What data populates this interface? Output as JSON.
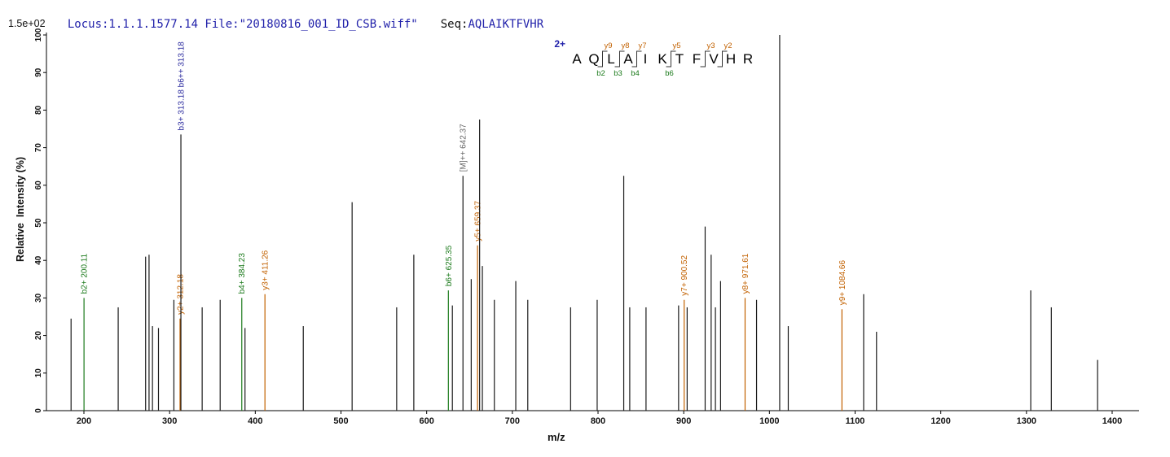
{
  "header": {
    "locus_file": "Locus:1.1.1.1577.14 File:\"20180816_001_ID_CSB.wiff\"",
    "seq_label": "Seq:",
    "seq_value": "AQLAIKTFVHR"
  },
  "colors": {
    "black": "#1a1a1a",
    "b": "#1b7a1b",
    "y": "#c26100",
    "navy": "#2a2a9e",
    "gray": "#666666",
    "header_blue": "#2121aa",
    "axis": "#000000"
  },
  "chart_data": {
    "type": "bar",
    "subtype": "ms2-centroid-spectrum",
    "title": "",
    "xlabel": "m/z",
    "ylabel": "Relative  Intensity (%)",
    "y_scale_note": "1.5e+02",
    "xlim": [
      156,
      1431
    ],
    "ylim": [
      0,
      100
    ],
    "grid": false,
    "legend": false,
    "x_ticks": [
      200,
      300,
      400,
      500,
      600,
      700,
      800,
      900,
      1000,
      1100,
      1200,
      1300,
      1400
    ],
    "y_ticks": [
      0,
      10,
      20,
      30,
      40,
      50,
      60,
      70,
      80,
      90,
      100
    ],
    "peaks": [
      {
        "mz": 185.0,
        "h": 24.5,
        "c": "black"
      },
      {
        "mz": 200.11,
        "h": 30.0,
        "c": "b",
        "label": "b2+ 200.11"
      },
      {
        "mz": 240.0,
        "h": 27.5,
        "c": "black"
      },
      {
        "mz": 272.0,
        "h": 41.0,
        "c": "black"
      },
      {
        "mz": 276.0,
        "h": 41.5,
        "c": "black"
      },
      {
        "mz": 280.0,
        "h": 22.5,
        "c": "black"
      },
      {
        "mz": 287.0,
        "h": 22.0,
        "c": "black"
      },
      {
        "mz": 305.0,
        "h": 29.5,
        "c": "black"
      },
      {
        "mz": 312.18,
        "h": 24.5,
        "c": "y",
        "label": "y2+ 312.18"
      },
      {
        "mz": 313.18,
        "h": 73.5,
        "c": "black",
        "label": "b3+ 313.18  b6++ 313.18",
        "lc": "navy"
      },
      {
        "mz": 338.0,
        "h": 27.5,
        "c": "black"
      },
      {
        "mz": 359.0,
        "h": 29.5,
        "c": "black"
      },
      {
        "mz": 384.23,
        "h": 30.0,
        "c": "b",
        "label": "b4+ 384.23"
      },
      {
        "mz": 388.0,
        "h": 22.0,
        "c": "black"
      },
      {
        "mz": 411.26,
        "h": 31.0,
        "c": "y",
        "label": "y3+ 411.26"
      },
      {
        "mz": 456.0,
        "h": 22.5,
        "c": "black"
      },
      {
        "mz": 513.0,
        "h": 55.5,
        "c": "black"
      },
      {
        "mz": 565.0,
        "h": 27.5,
        "c": "black"
      },
      {
        "mz": 585.0,
        "h": 41.5,
        "c": "black"
      },
      {
        "mz": 625.35,
        "h": 32.0,
        "c": "b",
        "label": "b6+ 625.35"
      },
      {
        "mz": 630.0,
        "h": 28.0,
        "c": "black"
      },
      {
        "mz": 642.37,
        "h": 62.5,
        "c": "black",
        "label": "[M]++ 642.37",
        "lc": "gray"
      },
      {
        "mz": 652.0,
        "h": 35.0,
        "c": "black"
      },
      {
        "mz": 659.37,
        "h": 44.0,
        "c": "y",
        "label": "y5+ 659.37"
      },
      {
        "mz": 661.8,
        "h": 77.5,
        "c": "black"
      },
      {
        "mz": 665.0,
        "h": 38.5,
        "c": "black"
      },
      {
        "mz": 679.0,
        "h": 29.5,
        "c": "black"
      },
      {
        "mz": 704.0,
        "h": 34.5,
        "c": "black"
      },
      {
        "mz": 718.0,
        "h": 29.5,
        "c": "black"
      },
      {
        "mz": 768.0,
        "h": 27.5,
        "c": "black"
      },
      {
        "mz": 799.0,
        "h": 29.5,
        "c": "black"
      },
      {
        "mz": 830.0,
        "h": 62.5,
        "c": "black"
      },
      {
        "mz": 837.0,
        "h": 27.5,
        "c": "black"
      },
      {
        "mz": 856.0,
        "h": 27.5,
        "c": "black"
      },
      {
        "mz": 894.0,
        "h": 28.0,
        "c": "black"
      },
      {
        "mz": 900.52,
        "h": 29.5,
        "c": "y",
        "label": "y7+ 900.52"
      },
      {
        "mz": 904.0,
        "h": 27.5,
        "c": "black"
      },
      {
        "mz": 925.0,
        "h": 49.0,
        "c": "black"
      },
      {
        "mz": 932.0,
        "h": 41.5,
        "c": "black"
      },
      {
        "mz": 937.0,
        "h": 27.5,
        "c": "black"
      },
      {
        "mz": 943.0,
        "h": 34.5,
        "c": "black"
      },
      {
        "mz": 971.61,
        "h": 30.0,
        "c": "y",
        "label": "y8+ 971.61"
      },
      {
        "mz": 985.0,
        "h": 29.5,
        "c": "black"
      },
      {
        "mz": 1012.0,
        "h": 100.0,
        "c": "black"
      },
      {
        "mz": 1022.0,
        "h": 22.5,
        "c": "black"
      },
      {
        "mz": 1084.66,
        "h": 27.0,
        "c": "y",
        "label": "y9+ 1084.66"
      },
      {
        "mz": 1110.0,
        "h": 31.0,
        "c": "black"
      },
      {
        "mz": 1125.0,
        "h": 21.0,
        "c": "black"
      },
      {
        "mz": 1305.0,
        "h": 32.0,
        "c": "black"
      },
      {
        "mz": 1329.0,
        "h": 27.5,
        "c": "black"
      },
      {
        "mz": 1383.0,
        "h": 13.5,
        "c": "black"
      }
    ],
    "sequence_annotation": {
      "charge": "2+",
      "residues": [
        "A",
        "Q",
        "L",
        "A",
        "I",
        "K",
        "T",
        "F",
        "V",
        "H",
        "R"
      ],
      "cleavages": [
        {
          "after": 1,
          "y": "y9",
          "b": "b2"
        },
        {
          "after": 2,
          "y": "y8",
          "b": "b3"
        },
        {
          "after": 3,
          "y": "y7",
          "b": "b4"
        },
        {
          "after": 5,
          "y": "y5",
          "b": "b6"
        },
        {
          "after": 7,
          "y": "y3",
          "b": null
        },
        {
          "after": 8,
          "y": "y2",
          "b": null
        }
      ]
    }
  }
}
